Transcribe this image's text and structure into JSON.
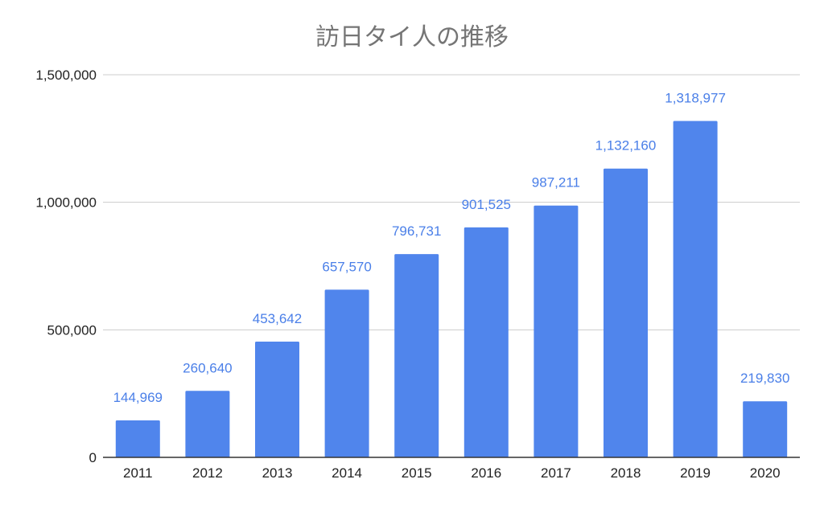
{
  "chart_data": {
    "type": "bar",
    "title": "訪日タイ人の推移",
    "xlabel": "",
    "ylabel": "",
    "categories": [
      "2011",
      "2012",
      "2013",
      "2014",
      "2015",
      "2016",
      "2017",
      "2018",
      "2019",
      "2020"
    ],
    "values": [
      144969,
      260640,
      453642,
      657570,
      796731,
      901525,
      987211,
      1132160,
      1318977,
      219830
    ],
    "data_labels": [
      "144,969",
      "260,640",
      "453,642",
      "657,570",
      "796,731",
      "901,525",
      "987,211",
      "1,132,160",
      "1,318,977",
      "219,830"
    ],
    "ylim": [
      0,
      1500000
    ],
    "y_ticks": [
      0,
      500000,
      1000000,
      1500000
    ],
    "y_tick_labels": [
      "0",
      "500,000",
      "1,000,000",
      "1,500,000"
    ],
    "grid": true,
    "legend": "none",
    "colors": {
      "bar": "#5085EC",
      "data_label": "#4A7FE8",
      "grid": "#CCCCCC",
      "baseline": "#333333",
      "title": "#757575",
      "tick": "#222222"
    }
  }
}
